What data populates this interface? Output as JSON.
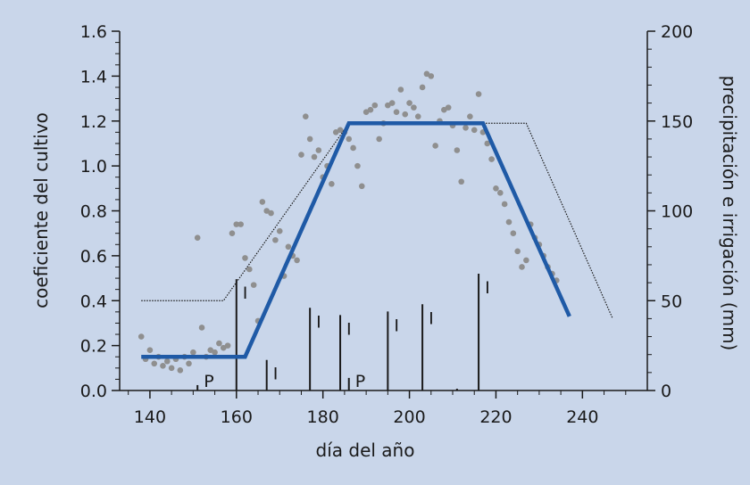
{
  "chart_data": {
    "type": "line",
    "title": "",
    "xlabel": "día del año",
    "ylabel_left": "coeficiente del cultivo",
    "ylabel_right": "precipitación e irrigación (mm)",
    "xlim": [
      133,
      255
    ],
    "ylim_left": [
      0,
      1.6
    ],
    "ylim_right": [
      0,
      200
    ],
    "x_ticks": [
      140,
      160,
      180,
      200,
      220,
      240
    ],
    "y_left_ticks": [
      "0.0",
      "0.2",
      "0.4",
      "0.6",
      "0.8",
      "1.0",
      "1.2",
      "1.4",
      "1.6"
    ],
    "y_right_ticks": [
      0,
      50,
      100,
      150,
      200
    ],
    "grid": false,
    "legend": "none",
    "colors": {
      "kc_line": "#1f5aa6",
      "observed": "#8f8f8f",
      "reference": "#1a1a1a",
      "bars": "#1a1a1a",
      "background": "#c9d6ea"
    },
    "series": [
      {
        "style": "thick-blue-line",
        "x": [
          138,
          162,
          186,
          217,
          237
        ],
        "y": [
          0.15,
          0.15,
          1.19,
          1.19,
          0.33
        ]
      },
      {
        "style": "thin-dotted-line",
        "x": [
          138,
          157,
          186,
          227,
          247
        ],
        "y": [
          0.4,
          0.4,
          1.19,
          1.19,
          0.32
        ]
      },
      {
        "style": "scatter",
        "x": [
          138,
          139,
          140,
          141,
          142,
          143,
          144,
          145,
          146,
          147,
          148,
          149,
          150,
          151,
          152,
          153,
          154,
          155,
          156,
          157,
          158,
          159,
          160,
          161,
          162,
          163,
          164,
          165,
          166,
          167,
          168,
          169,
          170,
          171,
          172,
          173,
          174,
          175,
          176,
          177,
          178,
          179,
          180,
          181,
          182,
          183,
          184,
          185,
          186,
          187,
          188,
          189,
          190,
          191,
          192,
          193,
          194,
          195,
          196,
          197,
          198,
          199,
          200,
          201,
          202,
          203,
          204,
          205,
          206,
          207,
          208,
          209,
          210,
          211,
          212,
          213,
          214,
          215,
          216,
          217,
          218,
          219,
          220,
          221,
          222,
          223,
          224,
          225,
          226,
          227,
          228,
          229,
          230,
          231,
          232,
          233,
          234
        ],
        "y": [
          0.24,
          0.14,
          0.18,
          0.12,
          0.15,
          0.11,
          0.13,
          0.1,
          0.14,
          0.09,
          0.15,
          0.12,
          0.17,
          0.68,
          0.28,
          0.15,
          0.18,
          0.17,
          0.21,
          0.19,
          0.2,
          0.7,
          0.74,
          0.74,
          0.59,
          0.54,
          0.47,
          0.31,
          0.84,
          0.8,
          0.79,
          0.67,
          0.71,
          0.51,
          0.64,
          0.6,
          0.58,
          1.05,
          1.22,
          1.12,
          1.04,
          1.07,
          0.95,
          1.0,
          0.92,
          1.15,
          1.16,
          1.15,
          1.12,
          1.08,
          1.0,
          0.91,
          1.24,
          1.25,
          1.27,
          1.12,
          1.19,
          1.27,
          1.28,
          1.24,
          1.34,
          1.23,
          1.28,
          1.26,
          1.22,
          1.35,
          1.41,
          1.4,
          1.09,
          1.2,
          1.25,
          1.26,
          1.18,
          1.07,
          0.93,
          1.17,
          1.22,
          1.16,
          1.32,
          1.15,
          1.1,
          1.03,
          0.9,
          0.88,
          0.83,
          0.75,
          0.7,
          0.62,
          0.55,
          0.58,
          0.74,
          0.68,
          0.65,
          0.6,
          0.55,
          0.52,
          0.49
        ]
      }
    ],
    "events": [
      {
        "type": "P",
        "day": 151,
        "mm": 3,
        "label": "P"
      },
      {
        "type": "I",
        "day": 160,
        "mm": 62,
        "label": "I"
      },
      {
        "type": "I",
        "day": 167,
        "mm": 17,
        "label": "I"
      },
      {
        "type": "I",
        "day": 177,
        "mm": 46,
        "label": "I"
      },
      {
        "type": "I",
        "day": 184,
        "mm": 42,
        "label": "I"
      },
      {
        "type": "P",
        "day": 186,
        "mm": 7,
        "label": "P"
      },
      {
        "type": "I",
        "day": 195,
        "mm": 44,
        "label": "I"
      },
      {
        "type": "I",
        "day": 203,
        "mm": 48,
        "label": "I"
      },
      {
        "type": "P",
        "day": 211,
        "mm": 1,
        "label": ""
      },
      {
        "type": "I",
        "day": 216,
        "mm": 65,
        "label": "I"
      }
    ]
  }
}
